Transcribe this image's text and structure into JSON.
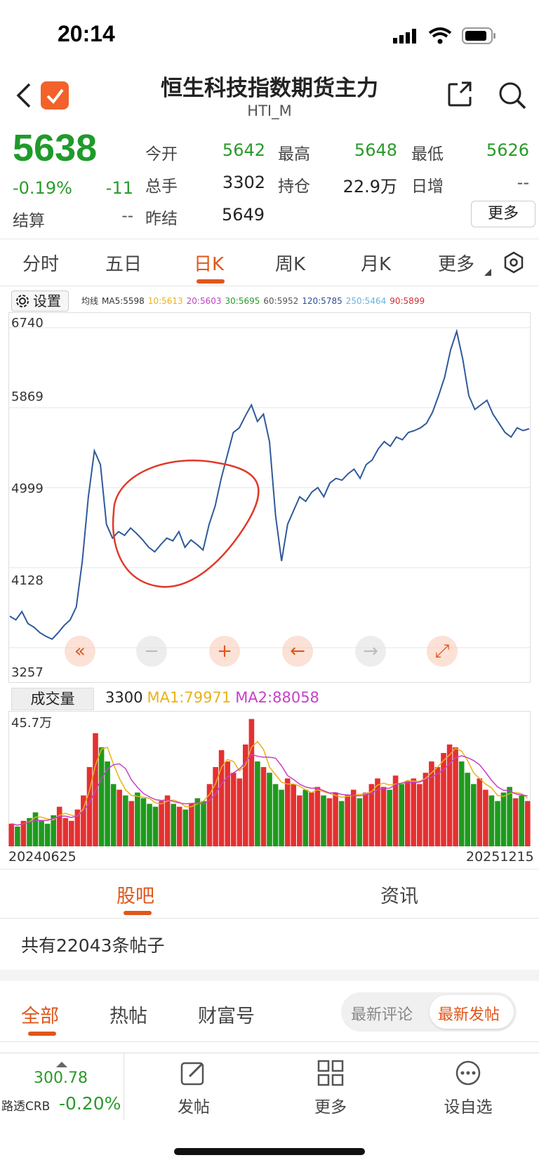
{
  "status_bar": {
    "time": "20:14"
  },
  "header": {
    "title": "恒生科技指数期货主力",
    "subtitle": "HTI_M"
  },
  "quote": {
    "price": "5638",
    "change_pct": "-0.19%",
    "change": "-11",
    "settle_label": "结算",
    "settle_value": "--",
    "fields": [
      {
        "label": "今开",
        "value": "5642"
      },
      {
        "label": "最高",
        "value": "5648"
      },
      {
        "label": "最低",
        "value": "5626"
      },
      {
        "label": "总手",
        "value": "3302"
      },
      {
        "label": "持仓",
        "value": "22.9万"
      },
      {
        "label": "日增",
        "value": "--"
      },
      {
        "label": "昨结",
        "value": "5649"
      }
    ],
    "more_label": "更多"
  },
  "tabs": [
    "分时",
    "五日",
    "日K",
    "周K",
    "月K",
    "更多"
  ],
  "active_tab": "日K",
  "chart": {
    "settings_label": "设置",
    "ma_legend": [
      {
        "text": "均线",
        "color": "#333333"
      },
      {
        "text": "MA5:5598",
        "color": "#333333"
      },
      {
        "text": "10:5613",
        "color": "#e8b21a"
      },
      {
        "text": "20:5603",
        "color": "#c640c6"
      },
      {
        "text": "30:5695",
        "color": "#2a9a2a"
      },
      {
        "text": "60:5952",
        "color": "#555555"
      },
      {
        "text": "120:5785",
        "color": "#2f4f8f"
      },
      {
        "text": "250:5464",
        "color": "#6ab0e0"
      },
      {
        "text": "90:5899",
        "color": "#d03030"
      }
    ],
    "y_ticks": [
      "6740",
      "5869",
      "4999",
      "4128",
      "3257"
    ],
    "volume_tab": "成交量",
    "volume_legend": [
      {
        "text": "3300",
        "color": "#222222"
      },
      {
        "text": "MA1:79971",
        "color": "#e8b21a"
      },
      {
        "text": "MA2:88058",
        "color": "#c640c6"
      }
    ],
    "volume_max": "45.7万",
    "date_start": "20240625",
    "date_end": "20251215",
    "line_color": "#2f5a99",
    "annotation_color": "#e03a2a"
  },
  "chart_data": {
    "type": "line",
    "x_range": [
      "20240625",
      "20251215"
    ],
    "ylim": [
      3257,
      6740
    ],
    "series": [
      {
        "values": [
          3600,
          3560,
          3650,
          3520,
          3480,
          3420,
          3380,
          3350,
          3420,
          3500,
          3560,
          3700,
          4200,
          4900,
          5400,
          5250,
          4600,
          4450,
          4520,
          4480,
          4560,
          4500,
          4430,
          4350,
          4300,
          4380,
          4450,
          4420,
          4520,
          4350,
          4430,
          4380,
          4320,
          4600,
          4800,
          5100,
          5350,
          5600,
          5650,
          5780,
          5900,
          5720,
          5800,
          5500,
          4700,
          4200,
          4600,
          4750,
          4900,
          4850,
          4950,
          5000,
          4900,
          5050,
          5100,
          5080,
          5150,
          5200,
          5100,
          5250,
          5300,
          5420,
          5500,
          5450,
          5550,
          5520,
          5600,
          5620,
          5650,
          5700,
          5820,
          6000,
          6200,
          6500,
          6700,
          6400,
          6000,
          5850,
          5900,
          5950,
          5800,
          5700,
          5600,
          5550,
          5650,
          5620,
          5640
        ]
      }
    ],
    "volume": {
      "max_label": "45.7万",
      "values": [
        8,
        7,
        9,
        10,
        12,
        9,
        8,
        11,
        14,
        10,
        9,
        13,
        18,
        28,
        40,
        35,
        30,
        22,
        20,
        18,
        16,
        19,
        17,
        15,
        14,
        16,
        18,
        15,
        14,
        13,
        15,
        17,
        16,
        22,
        28,
        34,
        30,
        26,
        24,
        36,
        45,
        30,
        28,
        26,
        22,
        20,
        24,
        22,
        18,
        20,
        19,
        21,
        18,
        17,
        19,
        16,
        18,
        20,
        17,
        19,
        22,
        24,
        21,
        20,
        25,
        22,
        23,
        24,
        22,
        26,
        30,
        28,
        33,
        36,
        35,
        30,
        26,
        22,
        24,
        20,
        18,
        16,
        19,
        21,
        17,
        18,
        16
      ]
    }
  },
  "chart_controls": [
    "«",
    "−",
    "+",
    "←",
    "→",
    "⤢"
  ],
  "sub_tabs": [
    "股吧",
    "资讯"
  ],
  "posts_count": "共有22043条帖子",
  "filters": {
    "tabs": [
      "全部",
      "热帖",
      "财富号"
    ],
    "seg": [
      "最新评论",
      "最新发帖"
    ]
  },
  "bottom_nav": {
    "ticker_value": "300.78",
    "ticker_name": "路透CRB",
    "ticker_change": "-0.20%",
    "items": [
      "发帖",
      "更多",
      "设自选"
    ]
  }
}
